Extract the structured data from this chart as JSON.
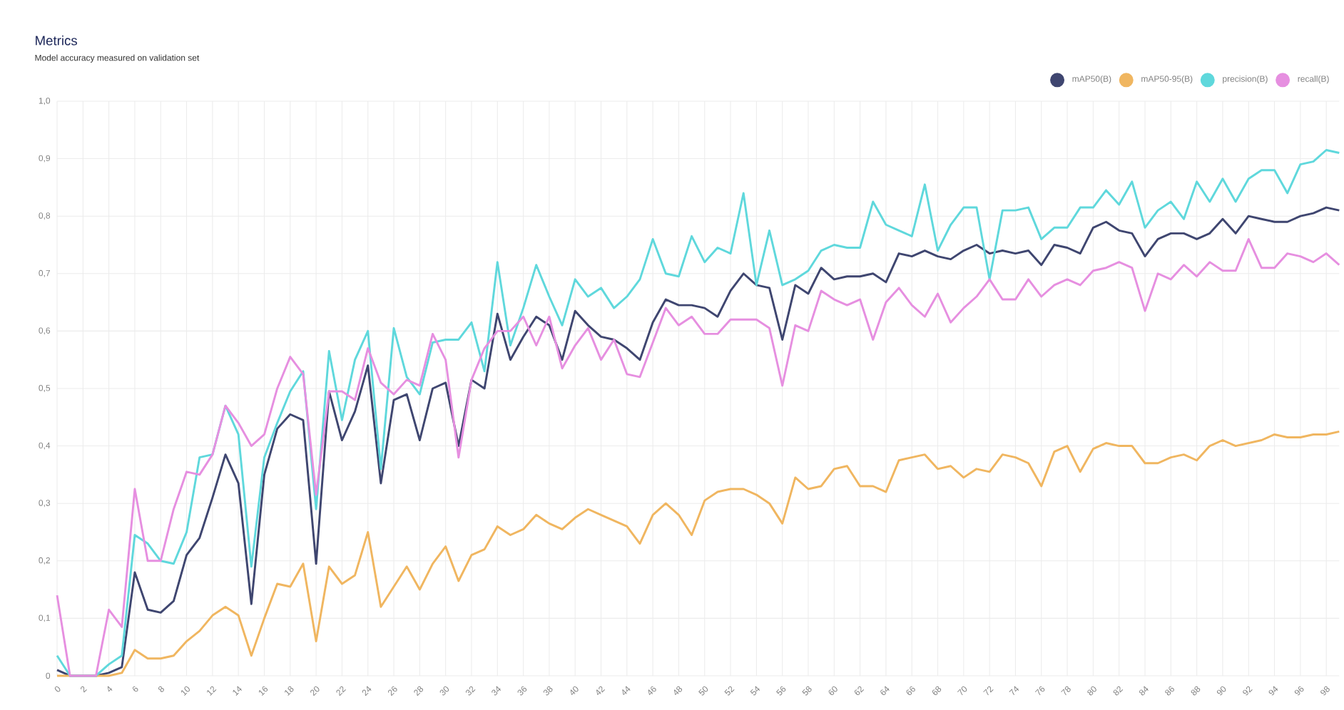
{
  "chart_data": {
    "type": "line",
    "title": "Metrics",
    "subtitle": "Model accuracy measured on validation set",
    "x": [
      0,
      1,
      2,
      3,
      4,
      5,
      6,
      7,
      8,
      9,
      10,
      11,
      12,
      13,
      14,
      15,
      16,
      17,
      18,
      19,
      20,
      21,
      22,
      23,
      24,
      25,
      26,
      27,
      28,
      29,
      30,
      31,
      32,
      33,
      34,
      35,
      36,
      37,
      38,
      39,
      40,
      41,
      42,
      43,
      44,
      45,
      46,
      47,
      48,
      49,
      50,
      51,
      52,
      53,
      54,
      55,
      56,
      57,
      58,
      59,
      60,
      61,
      62,
      63,
      64,
      65,
      66,
      67,
      68,
      69,
      70,
      71,
      72,
      73,
      74,
      75,
      76,
      77,
      78,
      79,
      80,
      81,
      82,
      83,
      84,
      85,
      86,
      87,
      88,
      89,
      90,
      91,
      92,
      93,
      94,
      95,
      96,
      97,
      98,
      99
    ],
    "series": [
      {
        "name": "mAP50(B)",
        "color": "#3f4670",
        "values": [
          0.01,
          0,
          0,
          0,
          0.005,
          0.015,
          0.18,
          0.115,
          0.11,
          0.13,
          0.21,
          0.24,
          0.31,
          0.385,
          0.335,
          0.125,
          0.35,
          0.43,
          0.455,
          0.445,
          0.195,
          0.495,
          0.41,
          0.46,
          0.54,
          0.335,
          0.48,
          0.49,
          0.41,
          0.5,
          0.51,
          0.4,
          0.515,
          0.5,
          0.63,
          0.55,
          0.59,
          0.625,
          0.61,
          0.55,
          0.635,
          0.61,
          0.59,
          0.585,
          0.57,
          0.55,
          0.615,
          0.655,
          0.645,
          0.645,
          0.64,
          0.625,
          0.67,
          0.7,
          0.68,
          0.675,
          0.585,
          0.68,
          0.665,
          0.71,
          0.69,
          0.695,
          0.695,
          0.7,
          0.685,
          0.735,
          0.73,
          0.74,
          0.73,
          0.725,
          0.74,
          0.75,
          0.735,
          0.74,
          0.735,
          0.74,
          0.715,
          0.75,
          0.745,
          0.735,
          0.78,
          0.79,
          0.775,
          0.77,
          0.73,
          0.76,
          0.77,
          0.77,
          0.76,
          0.77,
          0.795,
          0.77,
          0.8,
          0.795,
          0.79,
          0.79,
          0.8,
          0.805,
          0.815,
          0.81
        ]
      },
      {
        "name": "mAP50-95(B)",
        "color": "#f0b660",
        "values": [
          0,
          0,
          0,
          0,
          0,
          0.005,
          0.045,
          0.03,
          0.03,
          0.035,
          0.06,
          0.078,
          0.105,
          0.12,
          0.105,
          0.035,
          0.1,
          0.16,
          0.155,
          0.195,
          0.06,
          0.19,
          0.16,
          0.175,
          0.25,
          0.12,
          0.155,
          0.19,
          0.15,
          0.195,
          0.225,
          0.165,
          0.21,
          0.22,
          0.26,
          0.245,
          0.255,
          0.28,
          0.265,
          0.255,
          0.275,
          0.29,
          0.28,
          0.27,
          0.26,
          0.23,
          0.28,
          0.3,
          0.28,
          0.245,
          0.305,
          0.32,
          0.325,
          0.325,
          0.315,
          0.3,
          0.265,
          0.345,
          0.325,
          0.33,
          0.36,
          0.365,
          0.33,
          0.33,
          0.32,
          0.375,
          0.38,
          0.385,
          0.36,
          0.365,
          0.345,
          0.36,
          0.355,
          0.385,
          0.38,
          0.37,
          0.33,
          0.39,
          0.4,
          0.355,
          0.395,
          0.405,
          0.4,
          0.4,
          0.37,
          0.37,
          0.38,
          0.385,
          0.375,
          0.4,
          0.41,
          0.4,
          0.405,
          0.41,
          0.42,
          0.415,
          0.415,
          0.42,
          0.42,
          0.425
        ]
      },
      {
        "name": "precision(B)",
        "color": "#5fd8dc",
        "values": [
          0.035,
          0,
          0,
          0,
          0.02,
          0.035,
          0.245,
          0.23,
          0.2,
          0.195,
          0.25,
          0.38,
          0.385,
          0.47,
          0.42,
          0.19,
          0.38,
          0.44,
          0.495,
          0.53,
          0.29,
          0.565,
          0.445,
          0.55,
          0.6,
          0.36,
          0.605,
          0.52,
          0.49,
          0.58,
          0.585,
          0.585,
          0.615,
          0.53,
          0.72,
          0.575,
          0.64,
          0.715,
          0.66,
          0.61,
          0.69,
          0.66,
          0.675,
          0.64,
          0.66,
          0.69,
          0.76,
          0.7,
          0.695,
          0.765,
          0.72,
          0.745,
          0.735,
          0.84,
          0.68,
          0.775,
          0.68,
          0.69,
          0.705,
          0.74,
          0.75,
          0.745,
          0.745,
          0.825,
          0.785,
          0.775,
          0.765,
          0.855,
          0.74,
          0.785,
          0.815,
          0.815,
          0.69,
          0.81,
          0.81,
          0.815,
          0.76,
          0.78,
          0.78,
          0.815,
          0.815,
          0.845,
          0.82,
          0.86,
          0.78,
          0.81,
          0.825,
          0.795,
          0.86,
          0.825,
          0.865,
          0.825,
          0.865,
          0.88,
          0.88,
          0.84,
          0.89,
          0.895,
          0.915,
          0.91
        ]
      },
      {
        "name": "recall(B)",
        "color": "#e68fe0",
        "values": [
          0.14,
          0,
          0,
          0,
          0.115,
          0.085,
          0.325,
          0.2,
          0.2,
          0.29,
          0.355,
          0.35,
          0.385,
          0.47,
          0.44,
          0.4,
          0.42,
          0.5,
          0.555,
          0.525,
          0.315,
          0.495,
          0.495,
          0.48,
          0.57,
          0.51,
          0.49,
          0.515,
          0.505,
          0.595,
          0.55,
          0.38,
          0.515,
          0.57,
          0.6,
          0.6,
          0.625,
          0.575,
          0.625,
          0.535,
          0.575,
          0.605,
          0.55,
          0.585,
          0.525,
          0.52,
          0.58,
          0.64,
          0.61,
          0.625,
          0.595,
          0.595,
          0.62,
          0.62,
          0.62,
          0.605,
          0.505,
          0.61,
          0.6,
          0.67,
          0.655,
          0.645,
          0.655,
          0.585,
          0.65,
          0.675,
          0.645,
          0.625,
          0.665,
          0.615,
          0.64,
          0.66,
          0.69,
          0.655,
          0.655,
          0.69,
          0.66,
          0.68,
          0.69,
          0.68,
          0.705,
          0.71,
          0.72,
          0.71,
          0.635,
          0.7,
          0.69,
          0.715,
          0.695,
          0.72,
          0.705,
          0.705,
          0.76,
          0.71,
          0.71,
          0.735,
          0.73,
          0.72,
          0.735,
          0.715
        ]
      }
    ],
    "xlim": [
      0,
      99
    ],
    "xticks": [
      0,
      2,
      4,
      6,
      8,
      10,
      12,
      14,
      16,
      18,
      20,
      22,
      24,
      26,
      28,
      30,
      32,
      34,
      36,
      38,
      40,
      42,
      44,
      46,
      48,
      50,
      52,
      54,
      56,
      58,
      60,
      62,
      64,
      66,
      68,
      70,
      72,
      74,
      76,
      78,
      80,
      82,
      84,
      86,
      88,
      90,
      92,
      94,
      96,
      98
    ],
    "ylim": [
      0,
      1
    ],
    "yticks": [
      0,
      {
        "value": 0.1,
        "label": "0,1"
      },
      {
        "value": 0.2,
        "label": "0,2"
      },
      {
        "value": 0.3,
        "label": "0,3"
      },
      {
        "value": 0.4,
        "label": "0,4"
      },
      {
        "value": 0.5,
        "label": "0,5"
      },
      {
        "value": 0.6,
        "label": "0,6"
      },
      {
        "value": 0.7,
        "label": "0,7"
      },
      {
        "value": 0.8,
        "label": "0,8"
      },
      {
        "value": 0.9,
        "label": "0,9"
      },
      {
        "value": 1,
        "label": "1,0"
      }
    ],
    "grid": true,
    "legend": "top right",
    "line_style": "solid"
  }
}
